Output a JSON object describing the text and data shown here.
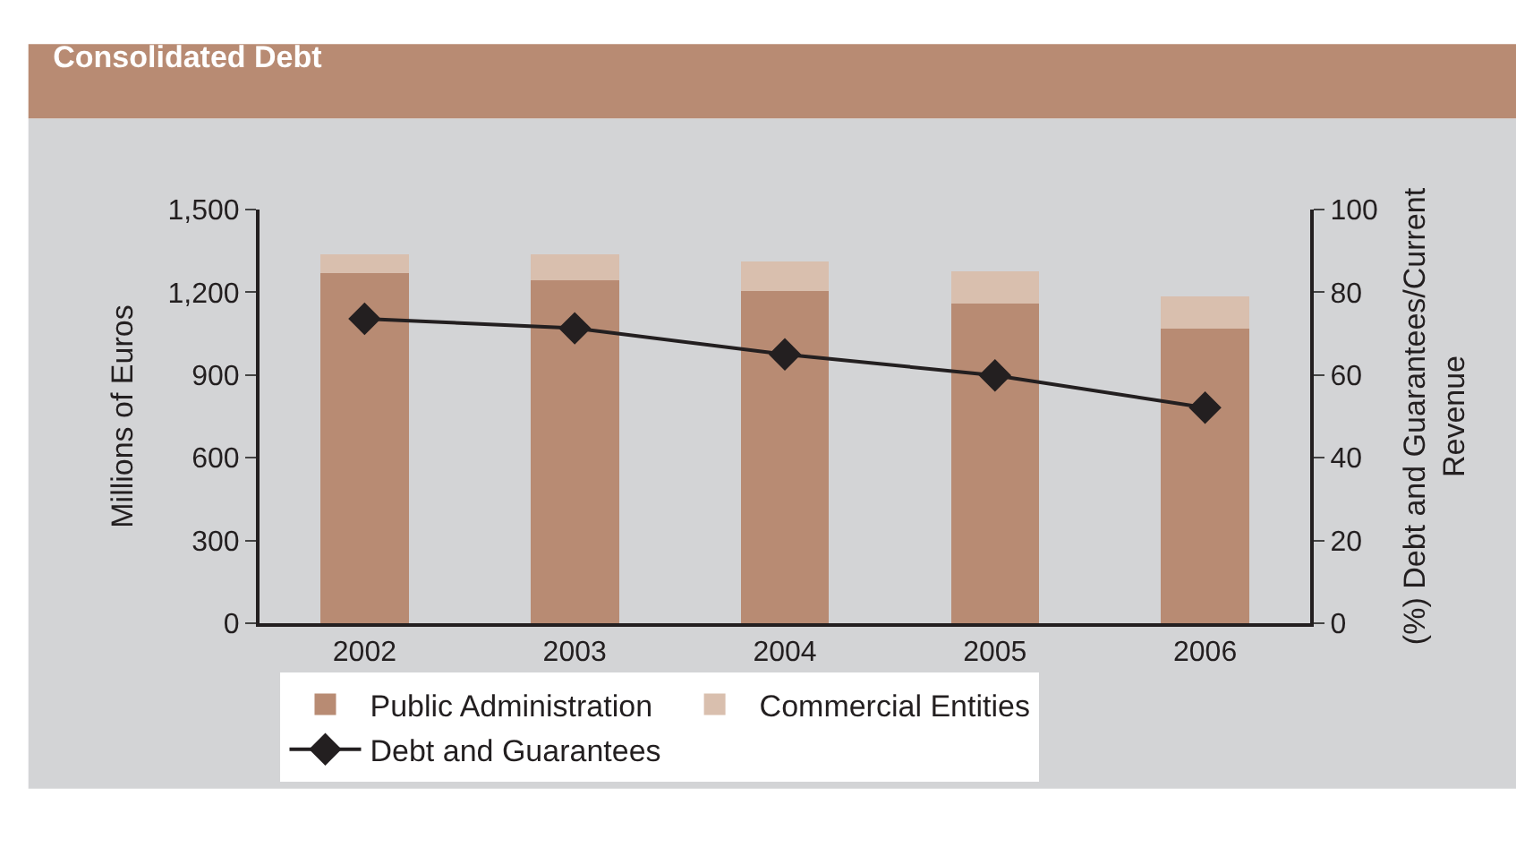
{
  "chart_data": {
    "type": "bar",
    "title": "Consolidated Debt",
    "ylabel": "Millions of Euros",
    "y2label": "(%) Debt and Guarantees/Current Revenue",
    "categories": [
      "2002",
      "2003",
      "2004",
      "2005",
      "2006"
    ],
    "stacked": true,
    "series": [
      {
        "name": "Public Administration",
        "color": "#b88b73",
        "values": [
          1269,
          1244,
          1204,
          1159,
          1067
        ]
      },
      {
        "name": "Commercial Entities",
        "color": "#d9bfae",
        "values": [
          69,
          94,
          109,
          117,
          117
        ]
      },
      {
        "name": "Debt and Guarantees",
        "type": "line",
        "axis": "y2",
        "color": "#231f20",
        "marker": "diamond",
        "line_style": "solid",
        "values": [
          73.6,
          71.3,
          65.0,
          59.9,
          52.1
        ]
      }
    ],
    "ylim": [
      0,
      1500
    ],
    "yticks": [
      0,
      300,
      600,
      900,
      {
        "value": 1200,
        "label": "1,200"
      },
      {
        "value": 1500,
        "label": "1,500"
      }
    ],
    "y2lim": [
      0,
      100
    ],
    "y2ticks": [
      0,
      20,
      40,
      60,
      80,
      100
    ],
    "grid": false,
    "legend": "bottom"
  }
}
